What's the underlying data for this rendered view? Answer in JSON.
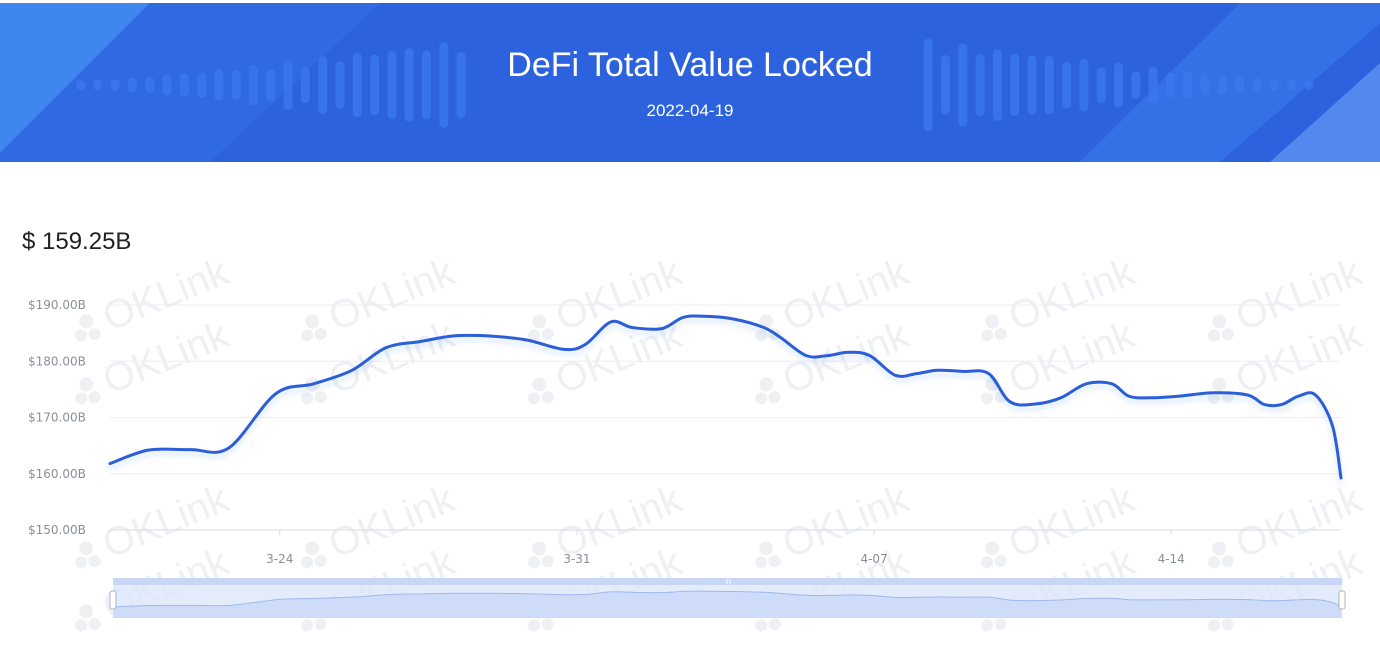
{
  "banner": {
    "title": "DeFi Total Value Locked",
    "date": "2022-04-19",
    "bg_color": "#2c62de",
    "accent_color": "#3b7af0"
  },
  "current_value": "$ 159.25B",
  "watermark_text": "OKLink",
  "chart_data": {
    "type": "line",
    "title": "",
    "xlabel": "",
    "ylabel": "",
    "y_tick_labels": [
      "$190.00B",
      "$180.00B",
      "$170.00B",
      "$160.00B",
      "$150.00B"
    ],
    "y_ticks": [
      190,
      180,
      170,
      160,
      150
    ],
    "ylim": [
      150,
      190
    ],
    "x_tick_labels": [
      "3-24",
      "3-31",
      "4-07",
      "4-14"
    ],
    "x_tick_days": [
      4,
      11,
      18,
      25
    ],
    "x_range_days": [
      0,
      29
    ],
    "grid": true,
    "line_color": "#2c5fd9",
    "series": [
      {
        "name": "",
        "days": [
          0,
          0.9,
          1.9,
          2.8,
          3.9,
          4.8,
          5.7,
          6.5,
          7.3,
          8.1,
          8.9,
          9.8,
          10.7,
          11.2,
          11.8,
          12.3,
          13.0,
          13.5,
          14.0,
          14.7,
          15.4,
          15.8,
          16.4,
          16.9,
          17.4,
          17.9,
          18.5,
          19.0,
          19.5,
          20.1,
          20.7,
          21.2,
          21.8,
          22.4,
          23.0,
          23.6,
          24.0,
          24.5,
          25.2,
          26.0,
          26.8,
          27.2,
          27.6,
          28.0,
          28.4,
          28.8,
          29.0
        ],
        "values": [
          161.8,
          164.2,
          164.3,
          164.6,
          174.2,
          176.0,
          178.4,
          182.4,
          183.5,
          184.5,
          184.5,
          183.8,
          182.1,
          183.0,
          187.0,
          186.0,
          185.8,
          187.8,
          188.0,
          187.5,
          186.0,
          184.2,
          181.0,
          181.0,
          181.6,
          181.0,
          177.5,
          177.8,
          178.4,
          178.2,
          177.8,
          172.8,
          172.4,
          173.5,
          176.0,
          176.0,
          173.8,
          173.5,
          173.8,
          174.4,
          174.0,
          172.3,
          172.3,
          173.8,
          174.0,
          168.5,
          159.25
        ]
      }
    ]
  }
}
